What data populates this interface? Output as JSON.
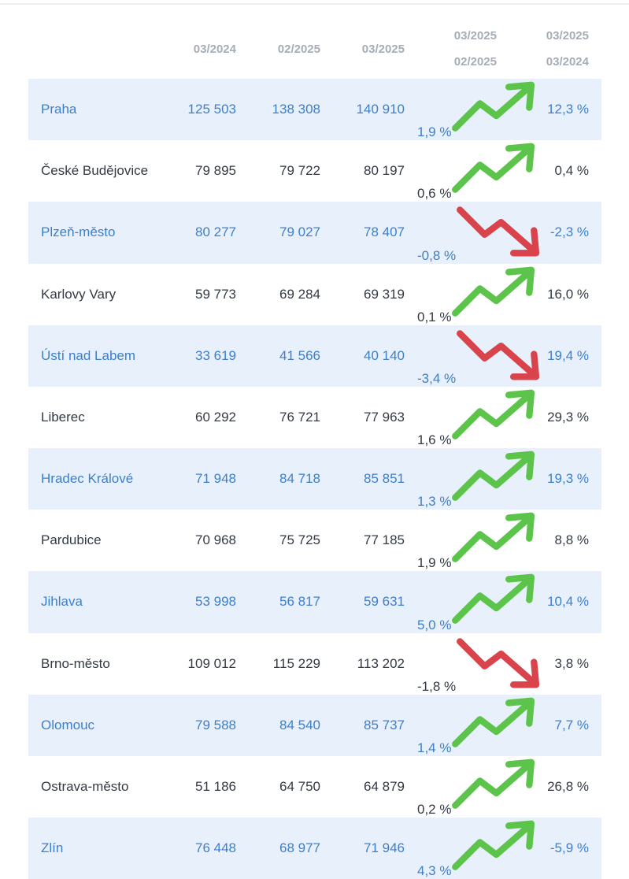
{
  "colors": {
    "header_text": "#a5adb7",
    "shaded_row_bg": "#e8f0fb",
    "shaded_row_text": "#3d7fcb",
    "plain_row_text": "#333a44",
    "trend_up": "#5cc44a",
    "trend_down": "#d9434b"
  },
  "header": {
    "col_2024_03": "03/2024",
    "col_2025_02": "02/2025",
    "col_2025_03": "03/2025",
    "mom_top": "03/2025",
    "mom_bottom": "02/2025",
    "yoy_top": "03/2025",
    "yoy_bottom": "03/2024"
  },
  "rows": [
    {
      "city": "Praha",
      "v2024_03": "125 503",
      "v2025_02": "138 308",
      "v2025_03": "140 910",
      "mom": "1,9 %",
      "trend": "up",
      "yoy": "12,3 %",
      "shaded": true
    },
    {
      "city": "České Budějovice",
      "v2024_03": "79 895",
      "v2025_02": "79 722",
      "v2025_03": "80 197",
      "mom": "0,6 %",
      "trend": "up",
      "yoy": "0,4 %",
      "shaded": false
    },
    {
      "city": "Plzeň-město",
      "v2024_03": "80 277",
      "v2025_02": "79 027",
      "v2025_03": "78 407",
      "mom": "-0,8 %",
      "trend": "down",
      "yoy": "-2,3 %",
      "shaded": true
    },
    {
      "city": "Karlovy Vary",
      "v2024_03": "59 773",
      "v2025_02": "69 284",
      "v2025_03": "69 319",
      "mom": "0,1 %",
      "trend": "up",
      "yoy": "16,0 %",
      "shaded": false
    },
    {
      "city": "Ústí nad Labem",
      "v2024_03": "33 619",
      "v2025_02": "41 566",
      "v2025_03": "40 140",
      "mom": "-3,4 %",
      "trend": "down",
      "yoy": "19,4 %",
      "shaded": true
    },
    {
      "city": "Liberec",
      "v2024_03": "60 292",
      "v2025_02": "76 721",
      "v2025_03": "77 963",
      "mom": "1,6 %",
      "trend": "up",
      "yoy": "29,3 %",
      "shaded": false
    },
    {
      "city": "Hradec Králové",
      "v2024_03": "71 948",
      "v2025_02": "84 718",
      "v2025_03": "85 851",
      "mom": "1,3 %",
      "trend": "up",
      "yoy": "19,3 %",
      "shaded": true
    },
    {
      "city": "Pardubice",
      "v2024_03": "70 968",
      "v2025_02": "75 725",
      "v2025_03": "77 185",
      "mom": "1,9 %",
      "trend": "up",
      "yoy": "8,8 %",
      "shaded": false
    },
    {
      "city": "Jihlava",
      "v2024_03": "53 998",
      "v2025_02": "56 817",
      "v2025_03": "59 631",
      "mom": "5,0 %",
      "trend": "up",
      "yoy": "10,4 %",
      "shaded": true
    },
    {
      "city": "Brno-město",
      "v2024_03": "109 012",
      "v2025_02": "115 229",
      "v2025_03": "113 202",
      "mom": "-1,8 %",
      "trend": "down",
      "yoy": "3,8 %",
      "shaded": false
    },
    {
      "city": "Olomouc",
      "v2024_03": "79 588",
      "v2025_02": "84 540",
      "v2025_03": "85 737",
      "mom": "1,4 %",
      "trend": "up",
      "yoy": "7,7 %",
      "shaded": true
    },
    {
      "city": "Ostrava-město",
      "v2024_03": "51 186",
      "v2025_02": "64 750",
      "v2025_03": "64 879",
      "mom": "0,2 %",
      "trend": "up",
      "yoy": "26,8 %",
      "shaded": false
    },
    {
      "city": "Zlín",
      "v2024_03": "76 448",
      "v2025_02": "68 977",
      "v2025_03": "71 946",
      "mom": "4,3 %",
      "trend": "up",
      "yoy": "-5,9 %",
      "shaded": true
    }
  ]
}
